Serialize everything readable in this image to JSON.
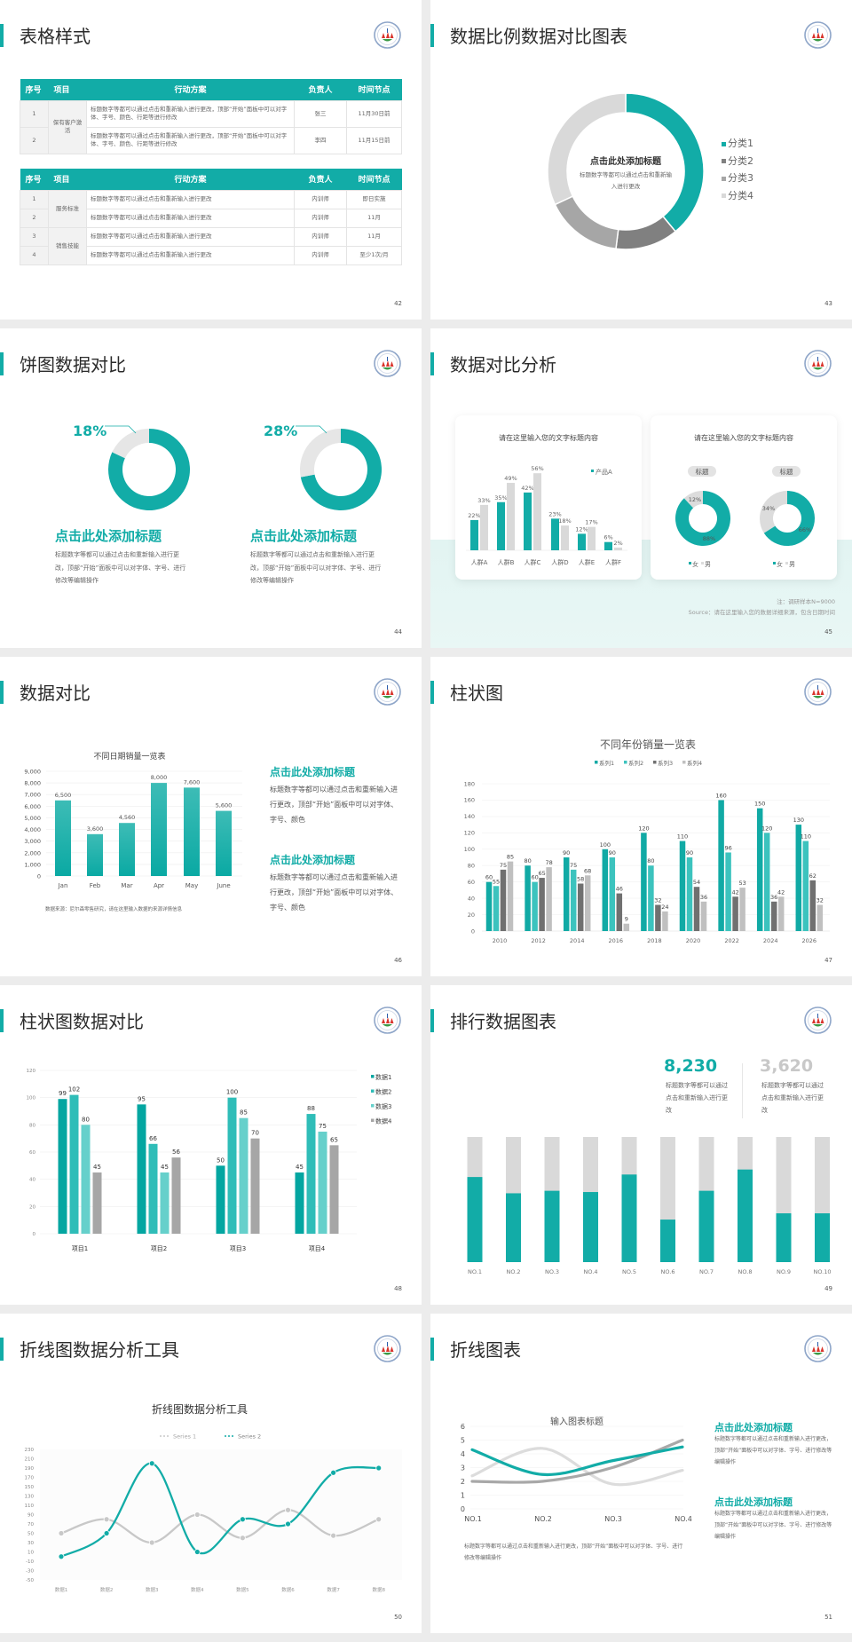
{
  "colors": {
    "accent": "#12aca7",
    "dark_gray": "#707070",
    "mid_gray": "#a6a6a6",
    "light_gray": "#d9d9d9"
  },
  "slides": [
    {
      "title": "表格样式",
      "page": "42"
    },
    {
      "title": "数据比例数据对比图表",
      "page": "43"
    },
    {
      "title": "饼图数据对比",
      "page": "44"
    },
    {
      "title": "数据对比分析",
      "page": "45"
    },
    {
      "title": "数据对比",
      "page": "46"
    },
    {
      "title": "柱状图",
      "page": "47"
    },
    {
      "title": "柱状图数据对比",
      "page": "48"
    },
    {
      "title": "排行数据图表",
      "page": "49"
    },
    {
      "title": "折线图数据分析工具",
      "page": "50"
    },
    {
      "title": "折线图表",
      "page": "51"
    }
  ],
  "table_slide": {
    "headers": [
      "序号",
      "项目",
      "行动方案",
      "负责人",
      "时间节点"
    ],
    "table1": [
      {
        "group": "保有客户激活",
        "rows": [
          {
            "no": "1",
            "plan": "标题数字等都可以通过点击和重新输入进行更改，顶部“开始”面板中可以对字体、字号、颜色、行距等进行修改",
            "owner": "张三",
            "time": "11月30日前"
          },
          {
            "no": "2",
            "plan": "标题数字等都可以通过点击和重新输入进行更改，顶部“开始”面板中可以对字体、字号、颜色、行距等进行修改",
            "owner": "李四",
            "time": "11月15日前"
          }
        ]
      }
    ],
    "table2": [
      {
        "group": "服务标准",
        "rows": [
          {
            "no": "1",
            "plan": "标题数字等都可以通过点击和重新输入进行更改",
            "owner": "内训师",
            "time": "即日实施"
          },
          {
            "no": "2",
            "plan": "标题数字等都可以通过点击和重新输入进行更改",
            "owner": "内训师",
            "time": "11月"
          }
        ]
      },
      {
        "group": "销售技能",
        "rows": [
          {
            "no": "3",
            "plan": "标题数字等都可以通过点击和重新输入进行更改",
            "owner": "内训师",
            "time": "11月"
          },
          {
            "no": "4",
            "plan": "标题数字等都可以通过点击和重新输入进行更改",
            "owner": "内训师",
            "time": "至少1次/月"
          }
        ]
      }
    ]
  },
  "ratio_slide": {
    "center_title": "点击此处添加标题",
    "center_text": "标题数字等都可以通过点击和重新输入进行更改"
  },
  "pie_slide": {
    "items": [
      {
        "title": "点击此处添加标题",
        "text": "标题数字等都可以通过点击和重新输入进行更改，顶部“开始”面板中可以对字体、字号、进行修改等编辑操作"
      },
      {
        "title": "点击此处添加标题",
        "text": "标题数字等都可以通过点击和重新输入进行更改，顶部“开始”面板中可以对字体、字号、进行修改等编辑操作"
      }
    ]
  },
  "analysis_slide": {
    "card1_title": "请在这里输入您的文字标题内容",
    "card2_title": "请在这里输入您的文字标题内容",
    "note": "注：调研样本N=9000",
    "source": "Source：请在这里输入您的数据详细来源，包含日期时间"
  },
  "compare_slide": {
    "source": "数据来源：尼尔森零售研究，请在这里输入数据的来源详情信息",
    "items": [
      {
        "title": "点击此处添加标题",
        "text": "标题数字等都可以通过点击和重新输入进行更改，顶部“开始”面板中可以对字体、字号、颜色"
      },
      {
        "title": "点击此处添加标题",
        "text": "标题数字等都可以通过点击和重新输入进行更改，顶部“开始”面板中可以对字体、字号、颜色"
      }
    ]
  },
  "rank_slide": {
    "stats": [
      {
        "value": "8,230",
        "text": "标题数字等都可以通过点击和重新输入进行更改",
        "color": "#12aca7"
      },
      {
        "value": "3,620",
        "text": "标题数字等都可以通过点击和重新输入进行更改",
        "color": "#c8c8c8"
      }
    ]
  },
  "line_slide": {
    "caption": "标题数字等都可以通过点击和重新输入进行更改，顶部“开始”面板中可以对字体、字号、进行修改等编辑操作",
    "items": [
      {
        "title": "点击此处添加标题",
        "text": "标题数字等都可以通过点击和重新输入进行更改，顶部“开始”面板中可以对字体、字号、进行修改等编辑操作"
      },
      {
        "title": "点击此处添加标题",
        "text": "标题数字等都可以通过点击和重新输入进行更改，顶部“开始”面板中可以对字体、字号、进行修改等编辑操作"
      }
    ]
  },
  "chart_data": [
    {
      "type": "pie",
      "donut": true,
      "categories": [
        "分类1",
        "分类2",
        "分类3",
        "分类4"
      ],
      "values": [
        39,
        13,
        16,
        32
      ],
      "colors": [
        "#12aca7",
        "#808080",
        "#a6a6a6",
        "#d9d9d9"
      ],
      "legend": "right"
    },
    {
      "type": "pie",
      "donut": true,
      "values": [
        82,
        18
      ],
      "label": "18%",
      "colors": [
        "#12aca7",
        "#e6e6e6"
      ]
    },
    {
      "type": "pie",
      "donut": true,
      "values": [
        72,
        28
      ],
      "label": "28%",
      "colors": [
        "#12aca7",
        "#e6e6e6"
      ]
    },
    {
      "type": "bar",
      "categories": [
        "人群A",
        "人群B",
        "人群C",
        "人群D",
        "人群E",
        "人群F"
      ],
      "series": [
        {
          "name": "产品A",
          "values": [
            22,
            35,
            42,
            23,
            12,
            6
          ],
          "color": "#12aca7"
        },
        {
          "values": [
            33,
            49,
            56,
            18,
            17,
            2
          ],
          "color": "#d9d9d9"
        }
      ],
      "unit": "%",
      "legend": "top-right"
    },
    {
      "type": "pie",
      "donut": true,
      "title": "标题",
      "categories": [
        "女",
        "男"
      ],
      "values": [
        88,
        12
      ],
      "colors": [
        "#12aca7",
        "#dcdcdc"
      ]
    },
    {
      "type": "pie",
      "donut": true,
      "title": "标题",
      "categories": [
        "女",
        "男"
      ],
      "values": [
        66,
        34
      ],
      "colors": [
        "#12aca7",
        "#dcdcdc"
      ]
    },
    {
      "type": "bar",
      "title": "不同日期销量一览表",
      "categories": [
        "Jan",
        "Feb",
        "Mar",
        "Apr",
        "May",
        "June"
      ],
      "values": [
        6500,
        3600,
        4560,
        8000,
        7600,
        5600
      ],
      "data_labels": [
        "6,500",
        "3,600",
        "4,560",
        "8,000",
        "7,600",
        "5,600"
      ],
      "yticks": [
        "0",
        "1,000",
        "2,000",
        "3,000",
        "4,000",
        "5,000",
        "6,000",
        "7,000",
        "8,000",
        "9,000"
      ],
      "ylim": [
        0,
        9000
      ],
      "grid": true
    },
    {
      "type": "bar",
      "title": "不同年份销量一览表",
      "categories": [
        "2010",
        "2012",
        "2014",
        "2016",
        "2018",
        "2020",
        "2022",
        "2024",
        "2026"
      ],
      "series": [
        {
          "name": "系列1",
          "values": [
            60,
            80,
            90,
            100,
            120,
            110,
            160,
            150,
            130
          ],
          "color": "#11aaa5"
        },
        {
          "name": "系列2",
          "values": [
            55,
            60,
            75,
            90,
            80,
            90,
            96,
            120,
            110
          ],
          "color": "#3cc3be"
        },
        {
          "name": "系列3",
          "values": [
            75,
            65,
            58,
            46,
            32,
            54,
            42,
            36,
            62
          ],
          "color": "#707070"
        },
        {
          "name": "系列4",
          "values": [
            85,
            78,
            68,
            9,
            24,
            36,
            53,
            42,
            32
          ],
          "color": "#c0c0c0"
        }
      ],
      "ylim": [
        0,
        180
      ],
      "ystep": 20,
      "legend": "top",
      "grid": true
    },
    {
      "type": "bar",
      "categories": [
        "项目1",
        "项目2",
        "项目3",
        "项目4"
      ],
      "series": [
        {
          "name": "数据1",
          "values": [
            99,
            95,
            50,
            45
          ],
          "color": "#03a6a1"
        },
        {
          "name": "数据2",
          "values": [
            102,
            66,
            100,
            88
          ],
          "color": "#2fbdb8"
        },
        {
          "name": "数据3",
          "values": [
            80,
            45,
            85,
            75
          ],
          "color": "#66d0cb"
        },
        {
          "name": "数据4",
          "values": [
            45,
            56,
            70,
            65
          ],
          "color": "#a6a6a6"
        }
      ],
      "ylim": [
        0,
        120
      ],
      "ystep": 20,
      "legend": "right",
      "grid": true
    },
    {
      "type": "bar",
      "stacked_progress": true,
      "categories": [
        "NO.1",
        "NO.2",
        "NO.3",
        "NO.4",
        "NO.5",
        "NO.6",
        "NO.7",
        "NO.8",
        "NO.9",
        "NO.10"
      ],
      "values": [
        0.68,
        0.55,
        0.57,
        0.56,
        0.7,
        0.34,
        0.57,
        0.74,
        0.39,
        0.39
      ],
      "colors": [
        "#12aca7",
        "#d9d9d9"
      ]
    },
    {
      "type": "line",
      "title": "折线图数据分析工具",
      "categories": [
        "数据1",
        "数据2",
        "数据3",
        "数据4",
        "数据5",
        "数据6",
        "数据7",
        "数据8"
      ],
      "series": [
        {
          "name": "Series 1",
          "values": [
            50,
            80,
            30,
            90,
            40,
            100,
            45,
            80
          ],
          "color": "#c8c8c8"
        },
        {
          "name": "Series 2",
          "values": [
            0,
            50,
            200,
            10,
            80,
            70,
            180,
            190
          ],
          "color": "#12aca7"
        }
      ],
      "ylim": [
        -50,
        230
      ],
      "ystep": 20,
      "legend": "top",
      "smooth": true
    },
    {
      "type": "line",
      "title": "输入图表标题",
      "categories": [
        "NO.1",
        "NO.2",
        "NO.3",
        "NO.4"
      ],
      "series": [
        {
          "values": [
            4.3,
            2.5,
            3.5,
            4.5
          ],
          "color": "#12aca7"
        },
        {
          "values": [
            2.4,
            4.4,
            1.8,
            2.8
          ],
          "color": "#dcdcdc"
        },
        {
          "values": [
            2.0,
            2.0,
            3.0,
            5.0
          ],
          "color": "#a8a8a8"
        }
      ],
      "ylim": [
        0,
        6
      ],
      "ystep": 1,
      "smooth": true,
      "grid": true
    }
  ]
}
